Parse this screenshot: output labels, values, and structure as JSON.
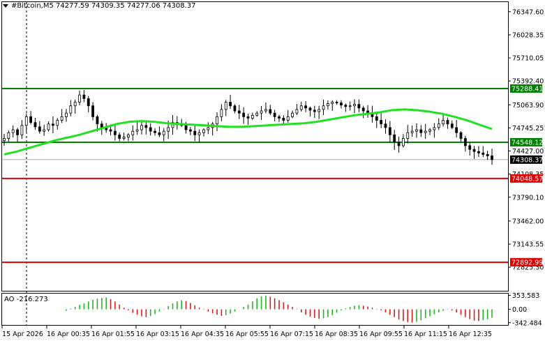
{
  "header": {
    "symbol": "#Bitcoin,M5",
    "open": "74277.59",
    "high": "74309.35",
    "low": "74277.06",
    "close": "74308.37"
  },
  "colors": {
    "candle": "#000000",
    "moving_average": "#22e022",
    "support_resistance_green": "#008000",
    "target_red": "#e00000",
    "ao_up": "#22b822",
    "ao_down": "#d42020",
    "price_tag_current": "#000000"
  },
  "price_axis": {
    "ticks": [
      "76347.60",
      "76028.35",
      "75710.05",
      "75392.40",
      "75063.90",
      "74745.25",
      "74427.00",
      "74108.35",
      "73790.10",
      "73462.00",
      "73143.55",
      "72825.30"
    ],
    "tick_values": [
      76347.6,
      76028.35,
      75710.05,
      75392.4,
      75063.9,
      74745.25,
      74427.0,
      74108.35,
      73790.1,
      73462.0,
      73143.55,
      72825.3
    ],
    "current_price": "74308.37",
    "current_value": 74308.37
  },
  "levels": [
    {
      "label": "75288.41",
      "value": 75288.41,
      "color": "#008000"
    },
    {
      "label": "74548.12",
      "value": 74548.12,
      "color": "#008000"
    },
    {
      "label": "74048.57",
      "value": 74048.57,
      "color": "#e00000"
    },
    {
      "label": "72892.99",
      "value": 72892.99,
      "color": "#e00000"
    }
  ],
  "time_axis": {
    "labels": [
      "15 Apr 2026",
      "16 Apr 00:35",
      "16 Apr 01:55",
      "16 Apr 03:15",
      "16 Apr 04:35",
      "16 Apr 05:55",
      "16 Apr 07:15",
      "16 Apr 08:35",
      "16 Apr 09:55",
      "16 Apr 11:15",
      "16 Apr 12:35"
    ]
  },
  "ao": {
    "label": "AO",
    "value": "-216.273",
    "ticks": [
      "353.583",
      "0.00",
      "-342.484"
    ],
    "tick_values": [
      353.583,
      0,
      -342.484
    ]
  },
  "chart_data": {
    "type": "candlestick",
    "title": "#Bitcoin,M5",
    "ylim": [
      72400,
      76500
    ],
    "close_path": [
      74600,
      74680,
      74720,
      74650,
      74780,
      74900,
      74820,
      74760,
      74700,
      74720,
      74800,
      74780,
      74850,
      74900,
      74950,
      75050,
      75100,
      75200,
      75150,
      75050,
      74900,
      74800,
      74750,
      74720,
      74700,
      74650,
      74600,
      74620,
      74650,
      74700,
      74720,
      74780,
      74750,
      74700,
      74680,
      74650,
      74700,
      74750,
      74820,
      74800,
      74780,
      74720,
      74700,
      74650,
      74680,
      74720,
      74750,
      74800,
      74900,
      75000,
      75100,
      75050,
      74980,
      74950,
      74900,
      74880,
      74920,
      74950,
      74980,
      75000,
      74950,
      74900,
      74880,
      74850,
      74900,
      74950,
      75000,
      75050,
      75020,
      74990,
      74970,
      75000,
      75050,
      75080,
      75100,
      75090,
      75060,
      75040,
      75050,
      75070,
      75020,
      74980,
      74950,
      74900,
      74850,
      74800,
      74750,
      74650,
      74550,
      74500,
      74600,
      74680,
      74700,
      74720,
      74680,
      74700,
      74720,
      74750,
      74800,
      74850,
      74800,
      74750,
      74680,
      74600,
      74500,
      74450,
      74420,
      74400,
      74380,
      74360,
      74308
    ],
    "moving_average": [
      74380,
      74420,
      74470,
      74520,
      74570,
      74610,
      74650,
      74700,
      74750,
      74800,
      74830,
      74840,
      74830,
      74810,
      74800,
      74790,
      74780,
      74770,
      74760,
      74760,
      74770,
      74780,
      74790,
      74800,
      74810,
      74830,
      74860,
      74890,
      74920,
      74940,
      74960,
      74990,
      75000,
      74990,
      74970,
      74940,
      74900,
      74850,
      74790,
      74730
    ],
    "ao_values": [
      -40,
      20,
      60,
      110,
      150,
      200,
      240,
      270,
      290,
      300,
      260,
      200,
      120,
      40,
      -30,
      -90,
      -140,
      -180,
      -200,
      -170,
      -120,
      -60,
      10,
      80,
      150,
      200,
      230,
      210,
      160,
      100,
      40,
      -10,
      -60,
      -100,
      -140,
      -170,
      -150,
      -110,
      -60,
      0,
      60,
      120,
      200,
      280,
      330,
      350,
      320,
      280,
      230,
      180,
      120,
      60,
      -10,
      -80,
      -140,
      -190,
      -220,
      -240,
      -230,
      -200,
      -150,
      -90,
      -30,
      20,
      60,
      90,
      100,
      90,
      70,
      40,
      10,
      -30,
      -80,
      -140,
      -200,
      -260,
      -300,
      -330,
      -342,
      -320,
      -280,
      -230,
      -180,
      -130,
      -80,
      -40,
      -10,
      -30,
      -80,
      -140,
      -200,
      -250,
      -290,
      -300,
      -280,
      -250,
      -216
    ],
    "legend": "none",
    "grid": false
  }
}
